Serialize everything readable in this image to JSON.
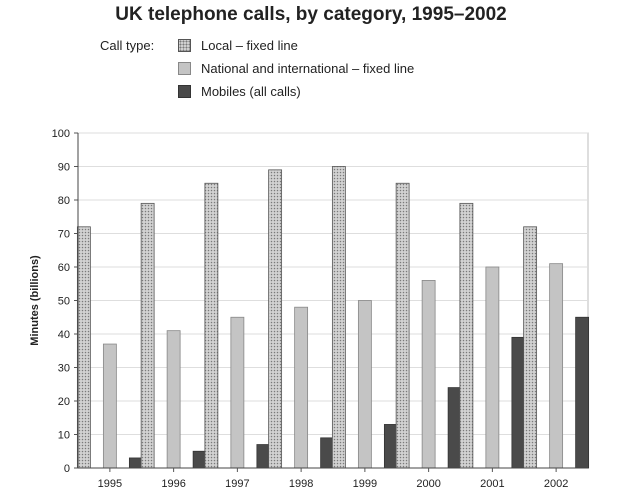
{
  "chart_data": {
    "type": "bar",
    "title": "UK telephone calls, by category, 1995–2002",
    "legend_title": "Call type:",
    "ylabel": "Minutes (billions)",
    "xlabel": "",
    "ylim": [
      0,
      100
    ],
    "yticks": [
      0,
      10,
      20,
      30,
      40,
      50,
      60,
      70,
      80,
      90,
      100
    ],
    "grid": true,
    "legend_position": "top",
    "categories": [
      "1995",
      "1996",
      "1997",
      "1998",
      "1999",
      "2000",
      "2001",
      "2002"
    ],
    "series": [
      {
        "name": "Local – fixed line",
        "values": [
          72,
          79,
          85,
          89,
          90,
          85,
          79,
          72
        ],
        "color": "#cfcfcf",
        "pattern": "dotted"
      },
      {
        "name": "National and international – fixed line",
        "values": [
          37,
          41,
          45,
          48,
          50,
          56,
          60,
          61
        ],
        "color": "#c4c4c4"
      },
      {
        "name": "Mobiles (all calls)",
        "values": [
          3,
          5,
          7,
          9,
          13,
          24,
          39,
          45
        ],
        "color": "#4a4a4a"
      }
    ]
  }
}
